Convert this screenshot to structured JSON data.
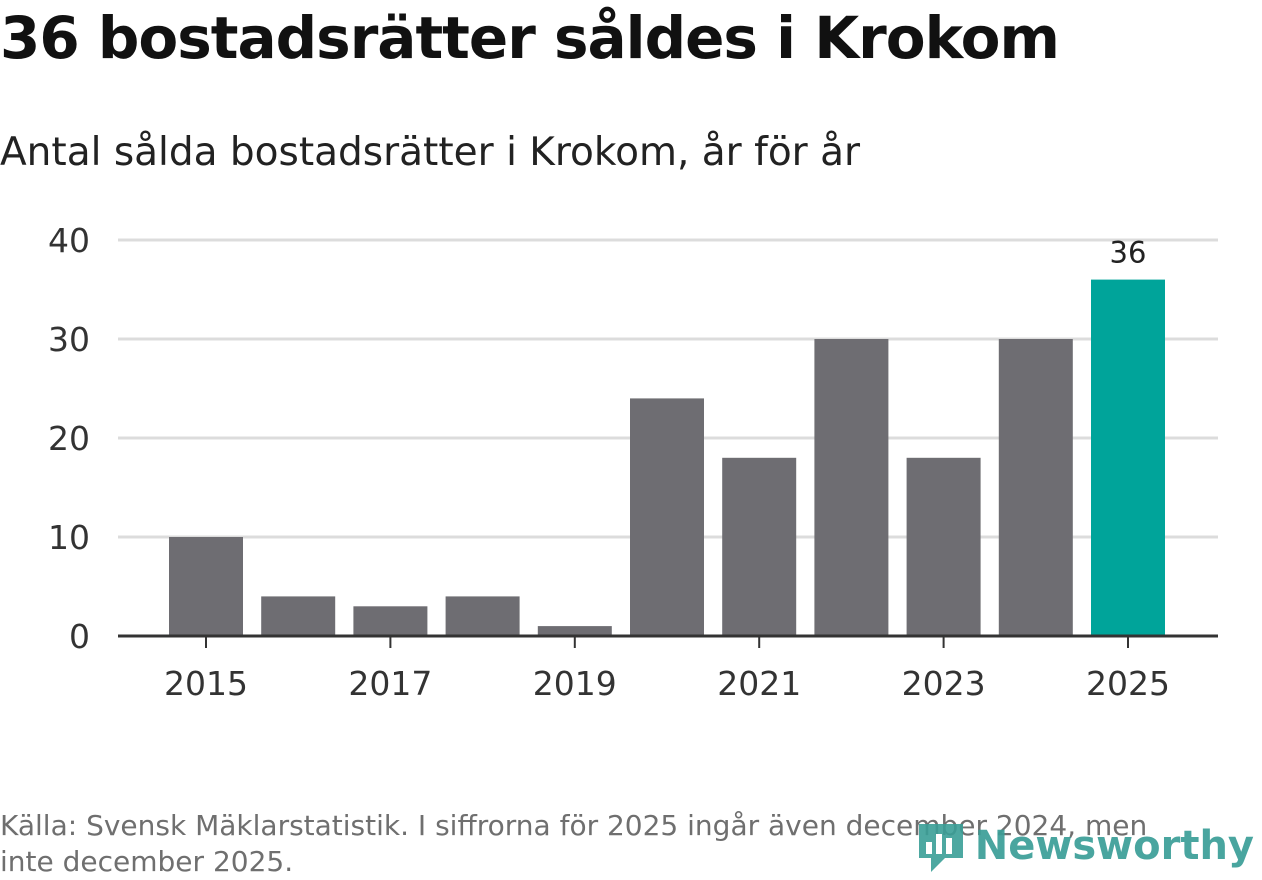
{
  "header": {
    "title": "36 bostadsrätter såldes i Krokom",
    "subtitle": "Antal sålda bostadsrätter i Krokom, år för år"
  },
  "footer": {
    "source": "Källa: Svensk Mäklarstatistik. I siffrorna för 2025 ingår även december 2024, men inte december 2025.",
    "logo_text": "Newsworthy",
    "logo_icon": "newsworthy-logo-icon"
  },
  "colors": {
    "bar": "#6e6d72",
    "highlight": "#00a49a",
    "grid": "#dcdcdc",
    "axis": "#333333",
    "brand": "#3a9e97"
  },
  "chart_data": {
    "type": "bar",
    "title": "36 bostadsrätter såldes i Krokom",
    "subtitle": "Antal sålda bostadsrätter i Krokom, år för år",
    "categories": [
      "2015",
      "2016",
      "2017",
      "2018",
      "2019",
      "2020",
      "2021",
      "2022",
      "2023",
      "2024",
      "2025"
    ],
    "values": [
      10,
      4,
      3,
      4,
      1,
      24,
      18,
      30,
      18,
      30,
      36
    ],
    "highlight_index": 10,
    "data_labels": [
      {
        "index": 10,
        "text": "36"
      }
    ],
    "x_tick_labels": [
      "2015",
      "2017",
      "2019",
      "2021",
      "2023",
      "2025"
    ],
    "y_ticks": [
      "0",
      "10",
      "20",
      "30",
      "40"
    ],
    "ylim": [
      0,
      40
    ],
    "xlabel": "",
    "ylabel": "",
    "grid": true
  }
}
